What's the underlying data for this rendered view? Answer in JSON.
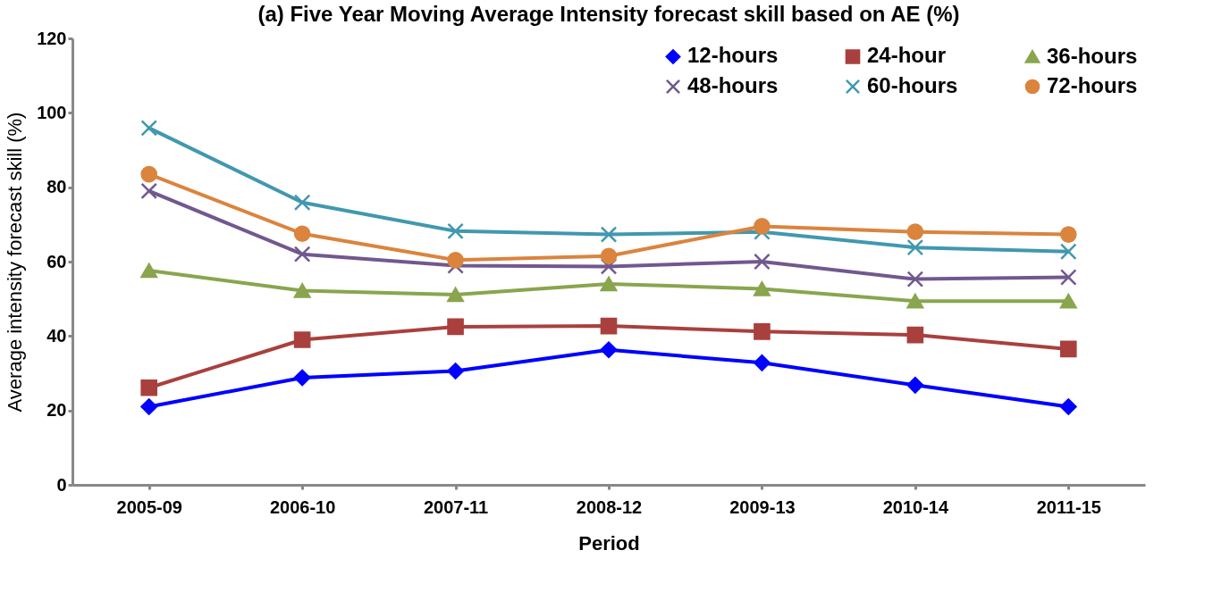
{
  "chart_data": {
    "type": "line",
    "title": "(a) Five Year Moving Average Intensity forecast skill based on AE (%)",
    "xlabel": "Period",
    "ylabel": "Average intensity forecast skill (%)",
    "categories": [
      "2005-09",
      "2006-10",
      "2007-11",
      "2008-12",
      "2009-13",
      "2010-14",
      "2011-15"
    ],
    "series": [
      {
        "name": "12-hours",
        "color": "#0000ff",
        "marker": "diamond",
        "values": [
          21.0,
          28.8,
          30.6,
          36.3,
          32.8,
          26.8,
          21.0
        ]
      },
      {
        "name": "24-hour",
        "color": "#a9403d",
        "marker": "square",
        "values": [
          26.1,
          39.0,
          42.5,
          42.7,
          41.2,
          40.3,
          36.5
        ]
      },
      {
        "name": "36-hours",
        "color": "#89a54e",
        "marker": "triangle",
        "values": [
          57.6,
          52.2,
          51.1,
          54.0,
          52.7,
          49.4,
          49.4
        ]
      },
      {
        "name": "48-hours",
        "color": "#71588f",
        "marker": "cross",
        "values": [
          79.0,
          62.0,
          58.9,
          58.7,
          60.0,
          55.3,
          55.8
        ]
      },
      {
        "name": "60-hours",
        "color": "#4198af",
        "marker": "cross",
        "values": [
          95.9,
          75.9,
          68.2,
          67.3,
          68.0,
          63.8,
          62.7
        ]
      },
      {
        "name": "72-hours",
        "color": "#db843d",
        "marker": "circle",
        "values": [
          83.5,
          67.5,
          60.4,
          61.5,
          69.5,
          68.0,
          67.3
        ]
      }
    ],
    "ylim": [
      0,
      120
    ],
    "yticks": [
      0,
      20,
      40,
      60,
      80,
      100,
      120
    ],
    "grid": false,
    "legend": "top right"
  }
}
